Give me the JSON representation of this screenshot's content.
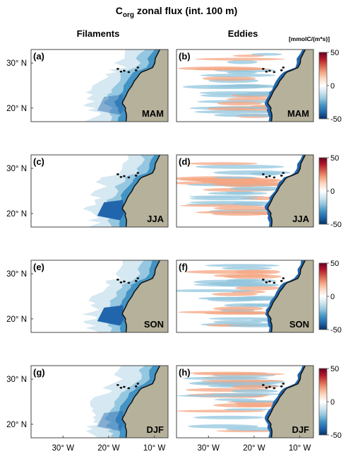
{
  "title_main": "C",
  "title_sub": "org",
  "title_rest": " zonal flux (int. 100 m)",
  "columns": [
    "Filaments",
    "Eddies"
  ],
  "colorbar": {
    "unit": "[mmolC/(m*s)]",
    "ticks": [
      50,
      0,
      -50
    ],
    "range": [
      -50,
      50
    ],
    "colors": [
      "#073061",
      "#2166ac",
      "#4393c3",
      "#92c5de",
      "#d1e5f0",
      "#ffffff",
      "#fddbc7",
      "#f4a582",
      "#d6604d",
      "#b2182b",
      "#67001f"
    ]
  },
  "land_color": "#b5b19b",
  "filament_color": "#2166ac",
  "eddy_positive_color": "#f4a582",
  "eddy_negative_color": "#92c5de",
  "chart_data": {
    "type": "heatmap",
    "title": "Corg zonal flux (int. 100 m)",
    "variable": "Corg zonal flux",
    "units": "mmolC/(m*s)",
    "color_range": [
      -50,
      50
    ],
    "x_ticks": [
      "30° W",
      "20° W",
      "10° W"
    ],
    "y_ticks": [
      "30° N",
      "20° N"
    ],
    "panels": [
      {
        "label": "(a)",
        "component": "Filaments",
        "season": "MAM"
      },
      {
        "label": "(b)",
        "component": "Eddies",
        "season": "MAM"
      },
      {
        "label": "(c)",
        "component": "Filaments",
        "season": "JJA"
      },
      {
        "label": "(d)",
        "component": "Eddies",
        "season": "JJA"
      },
      {
        "label": "(e)",
        "component": "Filaments",
        "season": "SON"
      },
      {
        "label": "(f)",
        "component": "Eddies",
        "season": "SON"
      },
      {
        "label": "(g)",
        "component": "Filaments",
        "season": "DJF"
      },
      {
        "label": "(h)",
        "component": "Eddies",
        "season": "DJF"
      }
    ]
  }
}
